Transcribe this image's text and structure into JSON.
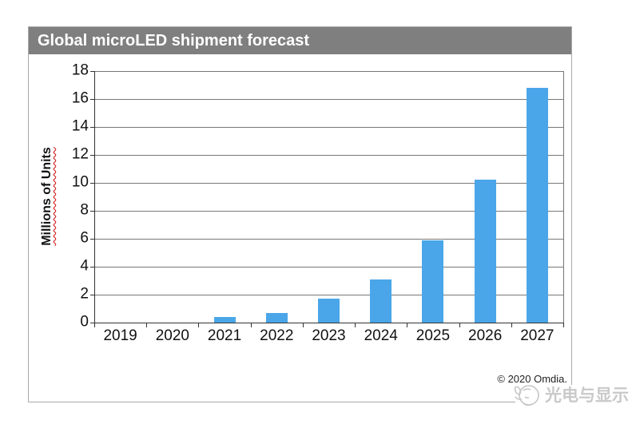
{
  "chart_data": {
    "type": "bar",
    "title": "Global microLED shipment forecast",
    "xlabel": "",
    "ylabel": "Millions of Units",
    "categories": [
      "2019",
      "2020",
      "2021",
      "2022",
      "2023",
      "2024",
      "2025",
      "2026",
      "2027"
    ],
    "values": [
      0,
      0,
      0.4,
      0.7,
      1.7,
      3.1,
      5.9,
      10.2,
      16.8
    ],
    "ylim": [
      0,
      18
    ],
    "ytick_step": 2,
    "grid": true,
    "legend": "none",
    "bar_color": "#4aa6e8",
    "title_bar_color": "#7f7f7f",
    "title_text_color": "#ffffff"
  },
  "footer": {
    "copyright": "© 2020 Omdia."
  },
  "watermark": {
    "icon": "mascot-logo",
    "text": "光电与显示",
    "color": "#c9c9c9"
  }
}
